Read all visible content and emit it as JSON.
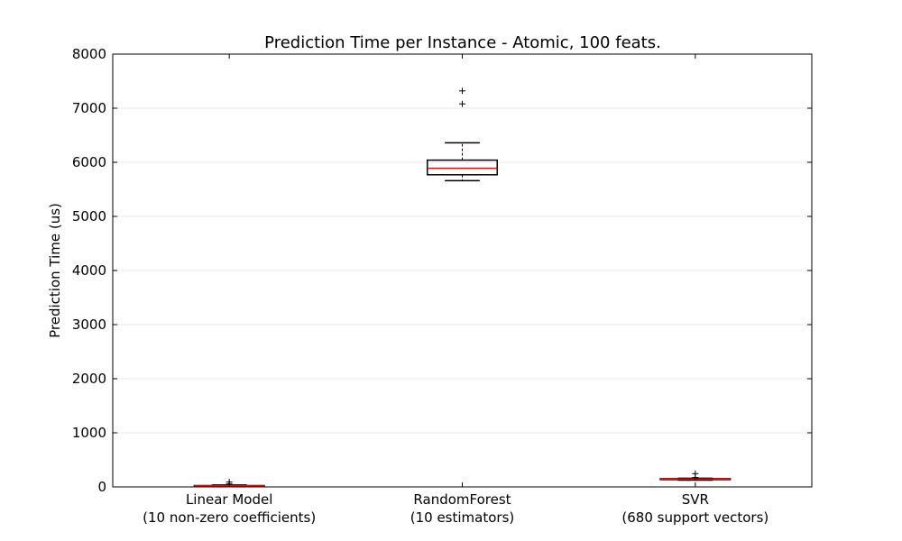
{
  "chart_data": {
    "type": "box",
    "title": "Prediction Time per Instance - Atomic, 100 feats.",
    "ylabel": "Prediction Time (us)",
    "xlabel": "",
    "ylim": [
      0,
      8000
    ],
    "yticks": [
      0,
      1000,
      2000,
      3000,
      4000,
      5000,
      6000,
      7000,
      8000
    ],
    "grid": "horizontal",
    "categories": [
      [
        "Linear Model",
        "(10 non-zero coefficients)"
      ],
      [
        "RandomForest",
        "(10 estimators)"
      ],
      [
        "SVR",
        "(680 support vectors)"
      ]
    ],
    "boxes": [
      {
        "whisker_low": 8,
        "q1": 15,
        "median": 20,
        "q3": 25,
        "whisker_high": 35,
        "outliers": [
          55,
          90
        ]
      },
      {
        "whisker_low": 5660,
        "q1": 5770,
        "median": 5890,
        "q3": 6040,
        "whisker_high": 6360,
        "outliers": [
          7080,
          7320
        ]
      },
      {
        "whisker_low": 125,
        "q1": 135,
        "median": 145,
        "q3": 152,
        "whisker_high": 160,
        "outliers": [
          175,
          245
        ]
      }
    ],
    "colors": {
      "median": "#ff0000",
      "box": "#000000",
      "grid": "#e8e8e8"
    }
  }
}
